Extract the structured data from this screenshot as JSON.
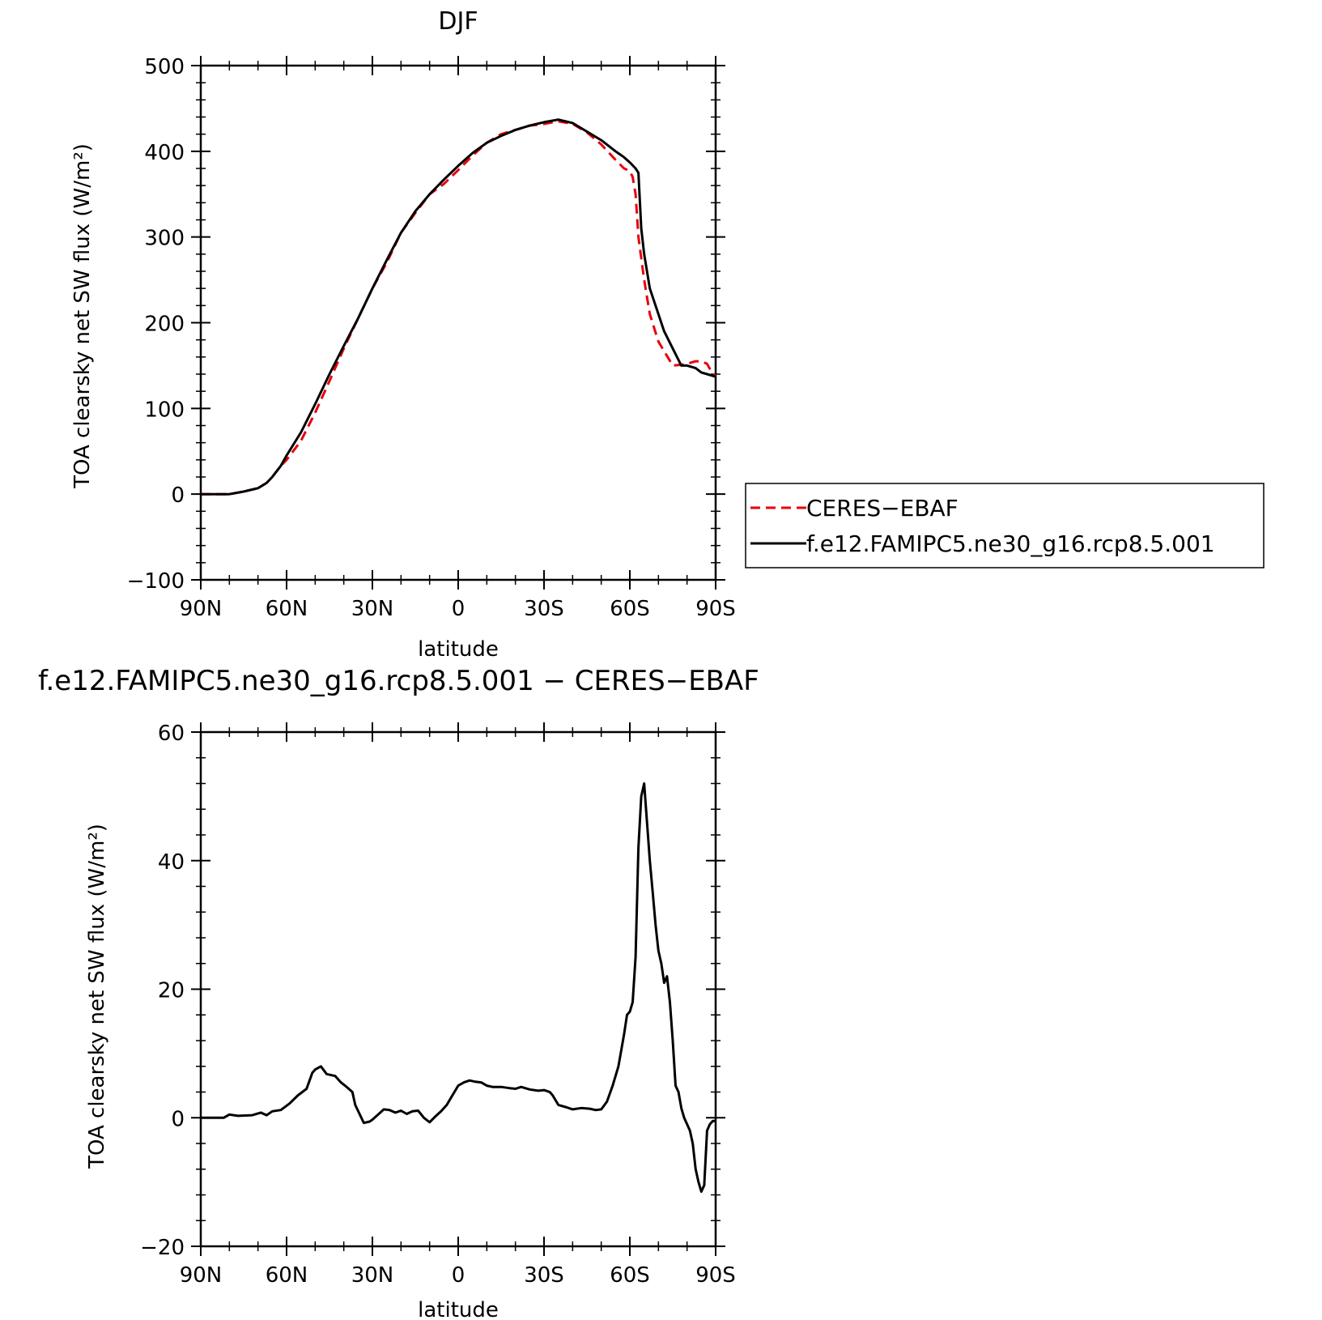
{
  "chart_data": [
    {
      "type": "line",
      "title": "DJF",
      "xlabel": "latitude",
      "ylabel": "TOA clearsky net SW flux (W/m²)",
      "xlim": [
        -90,
        90
      ],
      "ylim": [
        -100,
        500
      ],
      "x_ticks": [
        -90,
        -60,
        -30,
        0,
        30,
        60,
        90
      ],
      "x_tick_labels": [
        "90N",
        "60N",
        "30N",
        "0",
        "30S",
        "60S",
        "90S"
      ],
      "y_ticks": [
        -100,
        0,
        100,
        200,
        300,
        400,
        500
      ],
      "y_tick_labels": [
        "−100",
        "0",
        "100",
        "200",
        "300",
        "400",
        "500"
      ],
      "legend": {
        "position": "right",
        "entries": [
          "CERES−EBAF",
          "f.e12.FAMIPC5.ne30_g16.rcp8.5.001"
        ]
      },
      "series": [
        {
          "name": "CERES−EBAF",
          "color": "#e8000b",
          "dash": true,
          "x": [
            -90,
            -80,
            -75,
            -70,
            -67,
            -65,
            -62,
            -60,
            -55,
            -50,
            -45,
            -40,
            -35,
            -30,
            -25,
            -20,
            -15,
            -10,
            -5,
            0,
            5,
            10,
            15,
            20,
            25,
            30,
            35,
            40,
            45,
            50,
            55,
            58,
            60,
            61,
            62,
            63,
            65,
            67,
            70,
            75,
            78,
            80,
            83,
            85,
            87,
            89,
            90
          ],
          "y": [
            0,
            0,
            3,
            7,
            13,
            20,
            33,
            40,
            62,
            95,
            132,
            170,
            205,
            240,
            270,
            305,
            328,
            350,
            362,
            378,
            395,
            410,
            420,
            425,
            430,
            432,
            435,
            432,
            422,
            408,
            390,
            380,
            377,
            370,
            350,
            300,
            250,
            210,
            178,
            150,
            151,
            152,
            155,
            155,
            152,
            140,
            138
          ]
        },
        {
          "name": "f.e12.FAMIPC5.ne30_g16.rcp8.5.001",
          "color": "#000000",
          "dash": false,
          "x": [
            -90,
            -80,
            -75,
            -70,
            -67,
            -65,
            -62,
            -60,
            -55,
            -50,
            -45,
            -40,
            -35,
            -30,
            -25,
            -20,
            -15,
            -10,
            -5,
            0,
            5,
            10,
            15,
            20,
            25,
            30,
            35,
            40,
            45,
            50,
            55,
            58,
            60,
            62,
            63,
            64,
            65,
            67,
            70,
            72,
            75,
            78,
            80,
            83,
            85,
            87,
            90
          ],
          "y": [
            0,
            0,
            3,
            7,
            13,
            20,
            33,
            45,
            72,
            105,
            140,
            173,
            205,
            240,
            273,
            305,
            330,
            350,
            367,
            383,
            398,
            410,
            418,
            425,
            430,
            434,
            437,
            433,
            423,
            413,
            400,
            393,
            387,
            380,
            375,
            310,
            280,
            240,
            210,
            190,
            170,
            150,
            150,
            147,
            142,
            140,
            137
          ]
        }
      ]
    },
    {
      "type": "line",
      "title": "f.e12.FAMIPC5.ne30_g16.rcp8.5.001 − CERES−EBAF",
      "xlabel": "latitude",
      "ylabel": "TOA clearsky net SW flux (W/m²)",
      "xlim": [
        -90,
        90
      ],
      "ylim": [
        -20,
        60
      ],
      "x_ticks": [
        -90,
        -60,
        -30,
        0,
        30,
        60,
        90
      ],
      "x_tick_labels": [
        "90N",
        "60N",
        "30N",
        "0",
        "30S",
        "60S",
        "90S"
      ],
      "y_ticks": [
        -20,
        0,
        20,
        40,
        60
      ],
      "y_tick_labels": [
        "−20",
        "0",
        "20",
        "40",
        "60"
      ],
      "series": [
        {
          "color": "#000000",
          "dash": false,
          "x": [
            -90,
            -82,
            -80,
            -77,
            -72,
            -69,
            -67,
            -65,
            -62,
            -59,
            -56,
            -53,
            -51,
            -50,
            -48,
            -46,
            -43,
            -41,
            -39,
            -37,
            -36,
            -33,
            -31,
            -30,
            -28,
            -26,
            -24,
            -22,
            -20,
            -18,
            -16,
            -14,
            -12,
            -10,
            -8,
            -6,
            -4,
            -2,
            0,
            2,
            4,
            6,
            8,
            10,
            12,
            15,
            18,
            20,
            22,
            25,
            28,
            30,
            32,
            33,
            35,
            38,
            40,
            43,
            46,
            48,
            50,
            52,
            54,
            56,
            58,
            59,
            60,
            61,
            62,
            63,
            64,
            65,
            67,
            68,
            69,
            70,
            71,
            72,
            73,
            74,
            75,
            76,
            77,
            78,
            79,
            80,
            81,
            82,
            83,
            84,
            85,
            86,
            87,
            88,
            89,
            90
          ],
          "y": [
            0,
            0,
            0.5,
            0.3,
            0.4,
            0.8,
            0.4,
            1.0,
            1.2,
            2.2,
            3.5,
            4.5,
            7.0,
            7.5,
            8.0,
            6.8,
            6.5,
            5.5,
            4.8,
            4.0,
            2.0,
            -0.8,
            -0.6,
            -0.3,
            0.5,
            1.3,
            1.2,
            0.8,
            1.1,
            0.6,
            1.0,
            1.1,
            0.0,
            -0.7,
            0.2,
            1.0,
            2.0,
            3.5,
            5.0,
            5.5,
            5.8,
            5.6,
            5.5,
            5.0,
            4.8,
            4.8,
            4.6,
            4.5,
            4.8,
            4.4,
            4.2,
            4.3,
            4.0,
            3.5,
            2.0,
            1.6,
            1.3,
            1.5,
            1.4,
            1.2,
            1.3,
            2.5,
            5.0,
            8.0,
            13.0,
            16.0,
            16.5,
            18.0,
            25.0,
            42.0,
            50.0,
            52.0,
            40.0,
            35.0,
            30.0,
            26.0,
            24.0,
            21.0,
            22.0,
            18.0,
            12.0,
            5.0,
            4.0,
            1.5,
            0.0,
            -1.0,
            -2.0,
            -4.0,
            -8.0,
            -10.0,
            -11.5,
            -10.5,
            -2.0,
            -1.0,
            -0.5,
            -0.5
          ]
        }
      ]
    }
  ]
}
